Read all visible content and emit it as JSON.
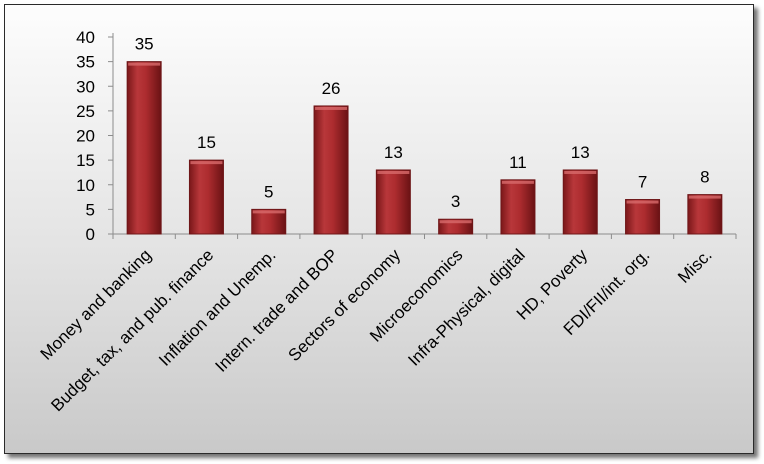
{
  "chart_data": {
    "type": "bar",
    "categories": [
      "Money and banking",
      "Budget, tax, and pub. finance",
      "Inflation and Unemp.",
      "Intern. trade and BOP",
      "Sectors of economy",
      "Microeconomics",
      "Infra-Physical, digital",
      "HD, Poverty",
      "FDI/FII/int. org.",
      "Misc."
    ],
    "values": [
      35,
      15,
      5,
      26,
      13,
      3,
      11,
      13,
      7,
      8
    ],
    "data_labels": [
      "35",
      "15",
      "5",
      "26",
      "13",
      "3",
      "11",
      "13",
      "7",
      "8"
    ],
    "ylim": [
      0,
      40
    ],
    "yticks": [
      "0",
      "5",
      "10",
      "15",
      "20",
      "25",
      "30",
      "35",
      "40"
    ],
    "grid": false,
    "legend": "none",
    "colors": {
      "bar": "#a8282b",
      "bar_edge": "#6e1618",
      "axis": "#8c8c8c"
    }
  }
}
